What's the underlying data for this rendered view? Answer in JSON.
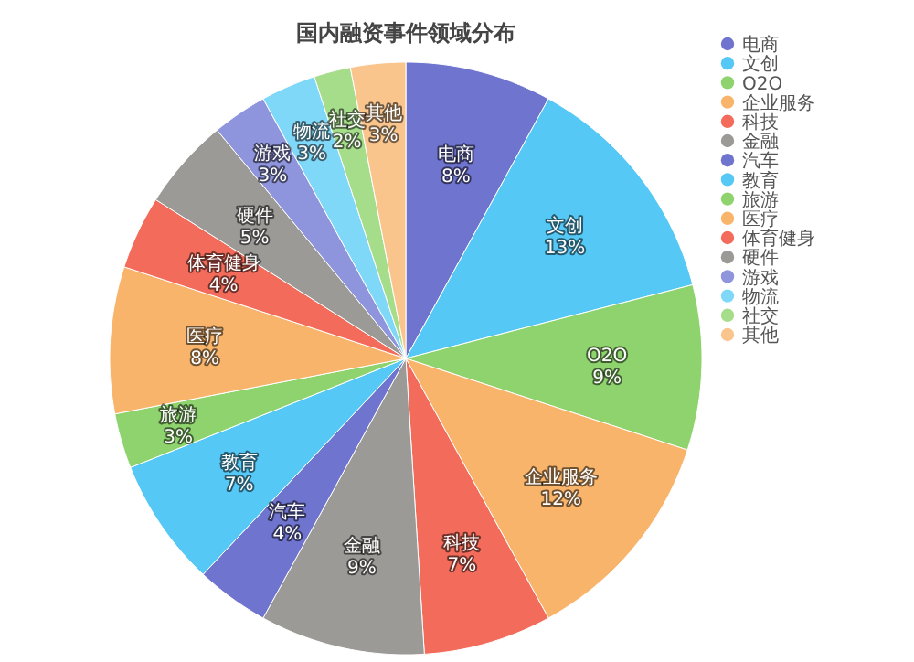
{
  "chart_data": {
    "type": "pie",
    "title": "国内融资事件领域分布",
    "categories": [
      "电商",
      "文创",
      "O2O",
      "企业服务",
      "科技",
      "金融",
      "汽车",
      "教育",
      "旅游",
      "医疗",
      "体育健身",
      "硬件",
      "游戏",
      "物流",
      "社交",
      "其他"
    ],
    "values": [
      8,
      13,
      9,
      12,
      7,
      9,
      4,
      7,
      3,
      8,
      4,
      5,
      3,
      3,
      2,
      3
    ],
    "colors": [
      "#6f74cf",
      "#55c8f5",
      "#8ed36d",
      "#f8b46a",
      "#f26b5b",
      "#9b9a96",
      "#6f74cf",
      "#55c8f5",
      "#8ed36d",
      "#f8b46a",
      "#f26b5b",
      "#9b9a96",
      "#8f95dc",
      "#80d8f8",
      "#a5dd8a",
      "#f9c58d"
    ],
    "value_labels": [
      "8%",
      "13%",
      "9%",
      "12%",
      "7%",
      "9%",
      "4%",
      "7%",
      "3%",
      "8%",
      "4%",
      "5%",
      "3%",
      "3%",
      "2%",
      "3%"
    ],
    "legend": "right"
  }
}
